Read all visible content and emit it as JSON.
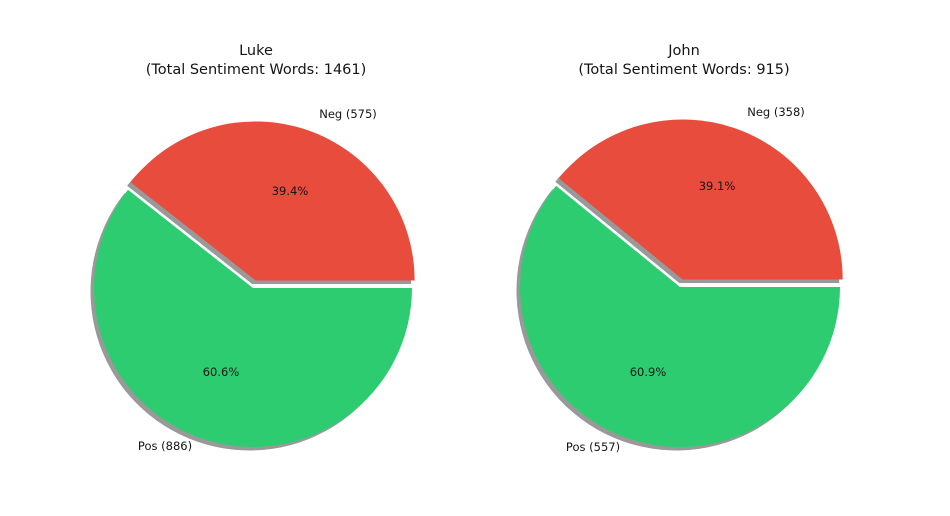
{
  "background": "#ffffff",
  "text_color": "#151515",
  "chart_data": [
    {
      "type": "pie",
      "title_line1": "Luke",
      "title_line2": "(Total Sentiment Words: 1461)",
      "total_sentiment_words": 1461,
      "start_angle": 0,
      "direction": "counterclockwise",
      "shadow": true,
      "shadow_color": "#999999",
      "slices": [
        {
          "name": "Neg",
          "count": 575,
          "pct": 39.4,
          "pct_label": "39.4%",
          "outer_label": "Neg (575)",
          "color": "#e74c3c",
          "exploded": true
        },
        {
          "name": "Pos",
          "count": 886,
          "pct": 60.6,
          "pct_label": "60.6%",
          "outer_label": "Pos (886)",
          "color": "#2ecc71",
          "exploded": false
        }
      ]
    },
    {
      "type": "pie",
      "title_line1": "John",
      "title_line2": "(Total Sentiment Words: 915)",
      "total_sentiment_words": 915,
      "start_angle": 0,
      "direction": "counterclockwise",
      "shadow": true,
      "shadow_color": "#999999",
      "slices": [
        {
          "name": "Neg",
          "count": 358,
          "pct": 39.1,
          "pct_label": "39.1%",
          "outer_label": "Neg (358)",
          "color": "#e74c3c",
          "exploded": true
        },
        {
          "name": "Pos",
          "count": 557,
          "pct": 60.9,
          "pct_label": "60.9%",
          "outer_label": "Pos (557)",
          "color": "#2ecc71",
          "exploded": false
        }
      ]
    }
  ]
}
